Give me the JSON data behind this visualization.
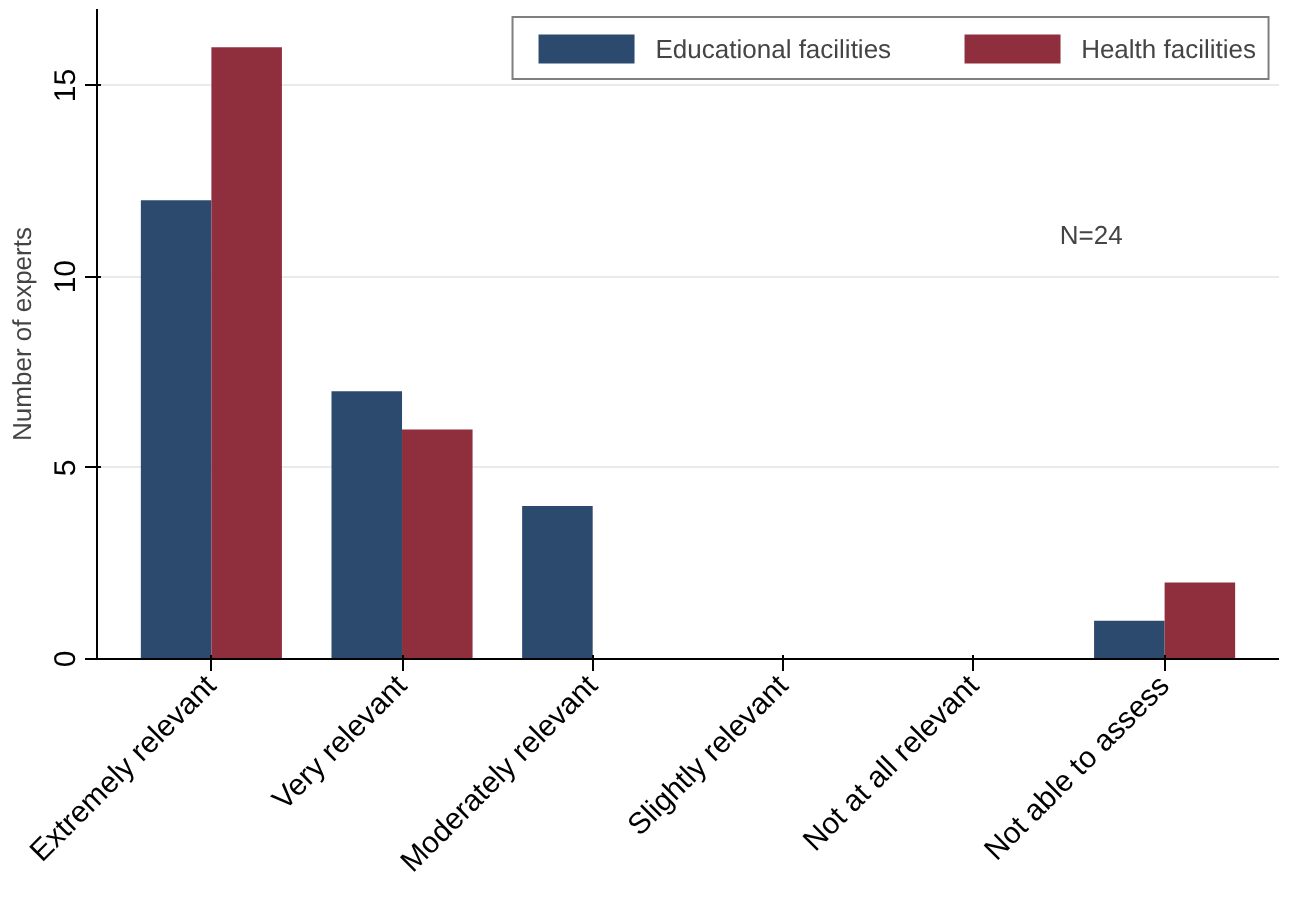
{
  "chart_data": {
    "type": "bar",
    "ylabel": "Number of experts",
    "categories": [
      "Extremely relevant",
      "Very relevant",
      "Moderately relevant",
      "Slightly relevant",
      "Not at all relevant",
      "Not able to assess"
    ],
    "series": [
      {
        "name": "Educational facilities",
        "color": "#2c4a6e",
        "values": [
          12,
          7,
          4,
          0,
          0,
          1
        ]
      },
      {
        "name": "Health facilities",
        "color": "#8f2f3d",
        "values": [
          16,
          6,
          0,
          0,
          0,
          2
        ]
      }
    ],
    "ylim": [
      0,
      17
    ],
    "yticks": [
      0,
      5,
      10,
      15
    ],
    "grid": "y",
    "legend": "top",
    "annotations": [
      "N=24"
    ]
  }
}
